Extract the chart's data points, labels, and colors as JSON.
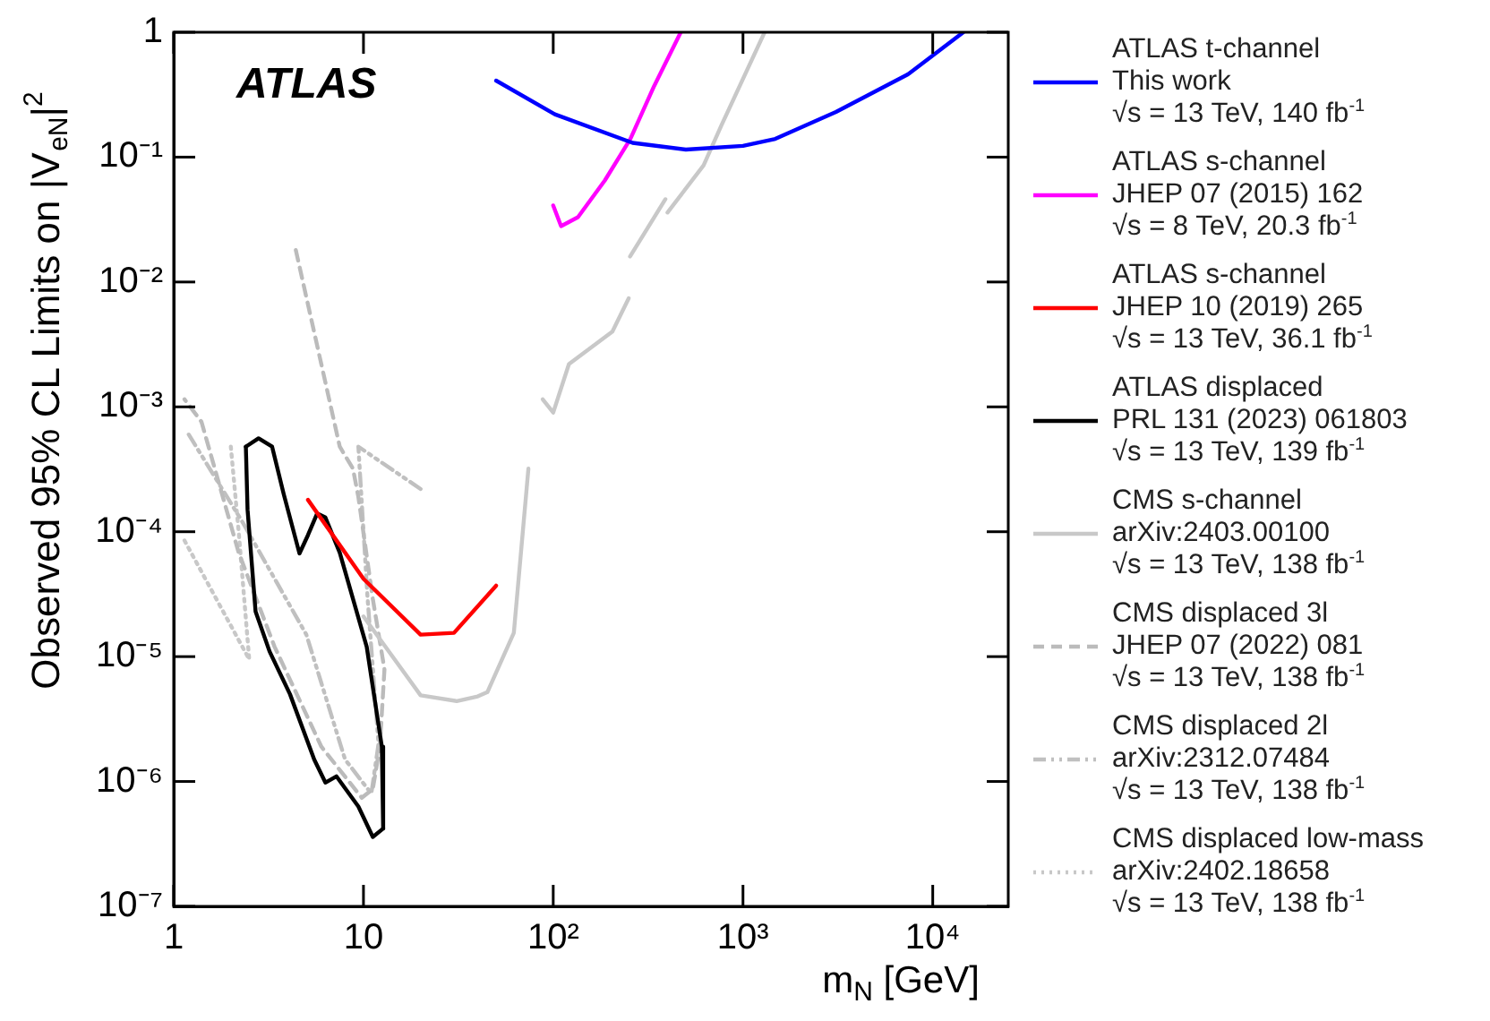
{
  "chart_data": {
    "type": "line",
    "xlabel": "m$_{N}$ [GeV]",
    "ylabel": "Observed 95% CL Limits on |V$_{eN}$|$^{2}$",
    "annotations": [
      "ATLAS"
    ],
    "log": "xy",
    "grid": false,
    "legend": "right",
    "xlim": [
      1,
      25000
    ],
    "xticks": [
      1,
      10,
      {
        "value": 100,
        "label": "10²"
      },
      {
        "value": 1000,
        "label": "10³"
      },
      {
        "value": 10000,
        "label": "10⁴"
      }
    ],
    "ylim": [
      1e-07,
      1
    ],
    "yticks": [
      {
        "value": 1e-07,
        "label": "10⁻⁷"
      },
      {
        "value": 1e-06,
        "label": "10⁻⁶"
      },
      {
        "value": 1e-05,
        "label": "10⁻⁵"
      },
      {
        "value": 0.0001,
        "label": "10⁻⁴"
      },
      {
        "value": 0.001,
        "label": "10⁻³"
      },
      {
        "value": 0.01,
        "label": "10⁻²"
      },
      {
        "value": 0.1,
        "label": "10⁻¹"
      },
      1
    ],
    "series": [
      {
        "name": "ATLAS t-channel\nThis work\n√s = 13 TeV, 140 fb$^{-1}$",
        "color": "#0000ff",
        "line_style": "solid",
        "x": [
          50,
          102,
          262,
          500,
          1000,
          1480,
          3090,
          7400,
          14500
        ],
        "values": [
          0.41,
          0.22,
          0.13,
          0.115,
          0.123,
          0.14,
          0.23,
          0.46,
          1
        ]
      },
      {
        "name": "ATLAS s-channel\nJHEP 07 (2015) 162\n√s = 8 TeV, 20.3 fb$^{-1}$",
        "color": "#ff00ff",
        "line_style": "solid",
        "x": [
          100,
          110,
          135,
          187,
          255,
          340,
          470
        ],
        "values": [
          0.041,
          0.028,
          0.033,
          0.065,
          0.14,
          0.37,
          1
        ]
      },
      {
        "name": "ATLAS s-channel\nJHEP 10 (2019) 265\n√s = 13 TeV, 36.1 fb$^{-1}$",
        "color": "#ff0000",
        "line_style": "solid",
        "x": [
          5.1,
          10,
          20,
          30,
          50
        ],
        "values": [
          0.00018,
          4.2e-05,
          1.5e-05,
          1.55e-05,
          3.7e-05
        ]
      },
      {
        "name": "ATLAS displaced\nPRL 131 (2023) 061803\n√s = 13 TeV, 139 fb$^{-1}$",
        "color": "#000000",
        "line_style": "solid",
        "x": [
          2.4,
          2.45,
          2.7,
          3.2,
          4.1,
          5.5,
          6.3,
          7.2,
          9.4,
          11.2,
          12.7
        ],
        "values": [
          0.00048,
          0.00015,
          2.3e-05,
          1.1e-05,
          5e-06,
          1.5e-06,
          9.8e-07,
          1.1e-06,
          6.3e-07,
          3.6e-07,
          4.2e-07
        ]
      },
      {
        "color": "#000000",
        "line_style": "solid",
        "x": [
          2.4,
          2.8,
          3.3,
          3.8,
          4.6,
          5.1,
          5.7,
          6.3,
          7.5,
          10.4,
          12.5,
          12.7
        ],
        "values": [
          0.00048,
          0.00056,
          0.00048,
          0.0002,
          6.7e-05,
          9.4e-05,
          0.00014,
          0.00013,
          6.8e-05,
          1.2e-05,
          1.9e-06,
          4.2e-07
        ]
      },
      {
        "name": "CMS s-channel\narXiv:2403.00100\n√s = 13 TeV, 138 fb$^{-1}$",
        "color": "#c8c8c8",
        "line_style": "solid",
        "x": [
          10,
          20,
          31,
          40,
          45,
          62,
          74
        ],
        "values": [
          2.1e-05,
          4.9e-06,
          4.4e-06,
          4.8e-06,
          5.2e-06,
          1.55e-05,
          0.00032
        ]
      },
      {
        "color": "#c8c8c8",
        "line_style": "solid",
        "x": [
          88,
          100,
          121,
          205,
          250
        ],
        "values": [
          0.00115,
          0.0009,
          0.0022,
          0.004,
          0.0074
        ]
      },
      {
        "color": "#c8c8c8",
        "line_style": "solid",
        "x": [
          254,
          390
        ],
        "values": [
          0.016,
          0.046
        ]
      },
      {
        "color": "#c8c8c8",
        "line_style": "solid",
        "x": [
          400,
          620,
          770,
          1300
        ],
        "values": [
          0.036,
          0.086,
          0.18,
          1
        ]
      },
      {
        "name": "CMS displaced 3l\nJHEP 07 (2022) 081\n√s = 13 TeV, 138 fb$^{-1}$",
        "color": "#bbbbbb",
        "line_style": "dashed",
        "x": [
          4.4,
          7.5,
          8.8,
          9.4,
          11.2,
          12.9,
          12.2,
          11.2,
          9.8,
          6.0,
          3.4,
          2.2,
          1.4,
          1.14
        ],
        "values": [
          0.018,
          0.00048,
          0.00032,
          0.00019,
          2.9e-05,
          7.9e-06,
          1.9e-06,
          8.7e-07,
          7.4e-07,
          1.9e-06,
          1.2e-05,
          6.8e-05,
          0.00076,
          0.00115
        ]
      },
      {
        "name": "CMS displaced 2l\narXiv:2312.07484\n√s = 13 TeV, 138 fb$^{-1}$",
        "color": "#c0c0c0",
        "line_style": "dashdot",
        "x": [
          1.2,
          2.3,
          5,
          8,
          11,
          12,
          10.5,
          9.4,
          20
        ],
        "values": [
          0.0006,
          0.00012,
          1.5e-05,
          1.5e-06,
          8e-07,
          2e-06,
          3e-05,
          0.00048,
          0.00022
        ]
      },
      {
        "name": "CMS displaced low-mass\narXiv:2402.18658\n√s = 13 TeV, 138 fb$^{-1}$",
        "color": "#c8c8c8",
        "line_style": "dotted",
        "x": [
          1.14,
          2.5,
          2.2,
          2.0
        ],
        "values": [
          8.5e-05,
          9.5e-06,
          0.0001,
          0.00048
        ]
      }
    ]
  }
}
